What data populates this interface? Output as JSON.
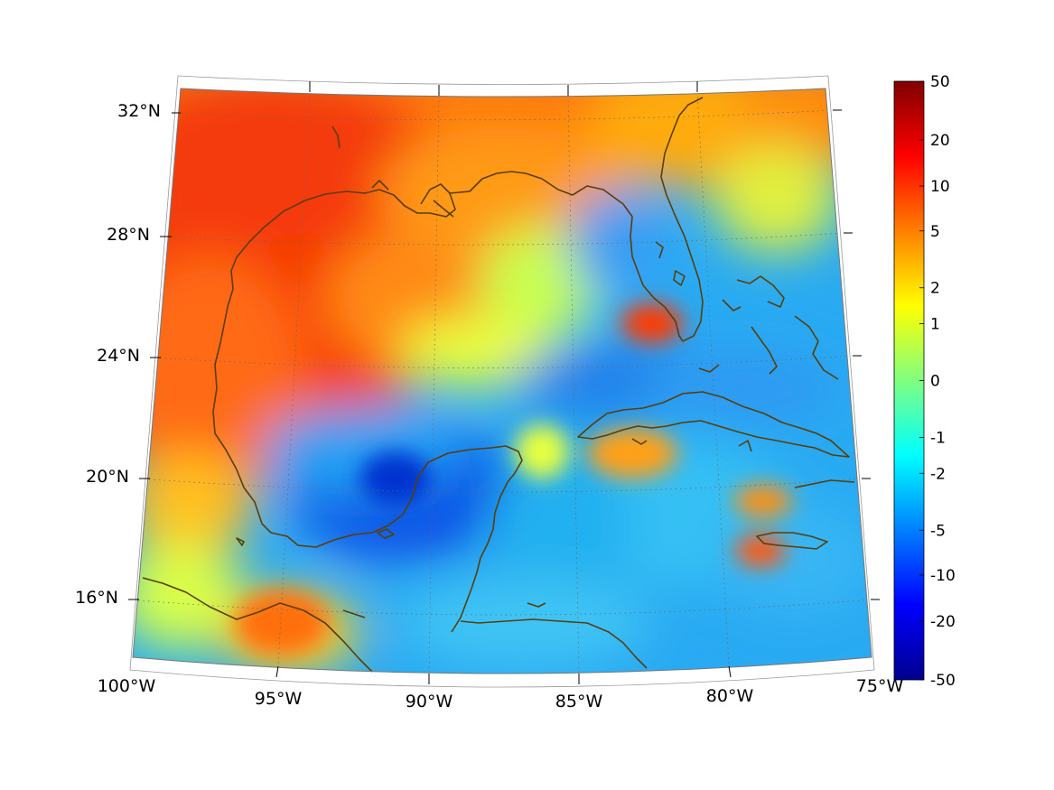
{
  "map": {
    "projection": "conic",
    "lon_range": [
      -100,
      -75
    ],
    "lat_range": [
      14,
      33
    ],
    "grid": "dotted",
    "coastline_color": "#5a3e0a",
    "lon_labels": [
      "100°W",
      "95°W",
      "90°W",
      "85°W",
      "80°W",
      "75°W"
    ],
    "lat_labels": [
      "32°N",
      "28°N",
      "24°N",
      "20°N",
      "16°N"
    ]
  },
  "colorbar": {
    "colormap": "jet",
    "placement": "right",
    "labels": [
      "50",
      "20",
      "10",
      "5",
      "2",
      "1",
      "0",
      "-1",
      "-2",
      "-5",
      "-10",
      "-20",
      "-50"
    ]
  }
}
